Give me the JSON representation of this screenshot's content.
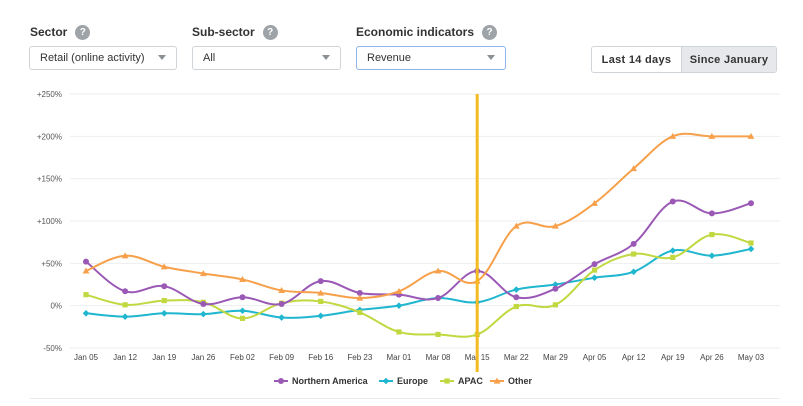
{
  "filters": {
    "sector": {
      "label": "Sector",
      "value": "Retail (online activity)"
    },
    "subsector": {
      "label": "Sub-sector",
      "value": "All"
    },
    "indicators": {
      "label": "Economic indicators",
      "value": "Revenue"
    },
    "help_icon_glyph": "?"
  },
  "range_toggle": {
    "options": [
      "Last 14 days",
      "Since January"
    ],
    "selected": "Since January"
  },
  "colors": {
    "northern_america": "#9b59b6",
    "europe": "#1fb6cf",
    "apac": "#c2d840",
    "other": "#f7a04b",
    "marker_line": "#f5b922"
  },
  "chart_data": {
    "type": "line",
    "title": "",
    "xlabel": "",
    "ylabel": "",
    "x": [
      "Jan 05",
      "Jan 12",
      "Jan 19",
      "Jan 26",
      "Feb 02",
      "Feb 09",
      "Feb 16",
      "Feb 23",
      "Mar 01",
      "Mar 08",
      "Mar 15",
      "Mar 22",
      "Mar 29",
      "Apr 05",
      "Apr 12",
      "Apr 19",
      "Apr 26",
      "May 03"
    ],
    "y_ticks": [
      "+250%",
      "+200%",
      "+150%",
      "+100%",
      "+50%",
      "0%",
      "-50%"
    ],
    "y_tick_values": [
      250,
      200,
      150,
      100,
      50,
      0,
      -50
    ],
    "ylim": [
      -50,
      250
    ],
    "vertical_marker": "Mar 15",
    "grid": "horizontal",
    "legend_position": "bottom",
    "series": [
      {
        "name": "Northern America",
        "marker": "circle",
        "color": "#9b59b6",
        "values": [
          52,
          17,
          23,
          2,
          10,
          2,
          29,
          15,
          13,
          9,
          41,
          10,
          20,
          49,
          73,
          123,
          109,
          121
        ]
      },
      {
        "name": "Europe",
        "marker": "diamond",
        "color": "#1fb6cf",
        "values": [
          -9,
          -13,
          -9,
          -10,
          -6,
          -14,
          -12,
          -5,
          0,
          9,
          4,
          19,
          25,
          33,
          40,
          65,
          59,
          67
        ]
      },
      {
        "name": "APAC",
        "marker": "square",
        "color": "#c2d840",
        "values": [
          13,
          1,
          6,
          4,
          -15,
          3,
          5,
          -8,
          -31,
          -34,
          -34,
          -1,
          1,
          42,
          61,
          57,
          84,
          74
        ]
      },
      {
        "name": "Other",
        "marker": "triangle",
        "color": "#f7a04b",
        "values": [
          41,
          59,
          46,
          38,
          31,
          18,
          15,
          9,
          17,
          41,
          29,
          94,
          94,
          121,
          162,
          200,
          200,
          200
        ]
      }
    ]
  }
}
